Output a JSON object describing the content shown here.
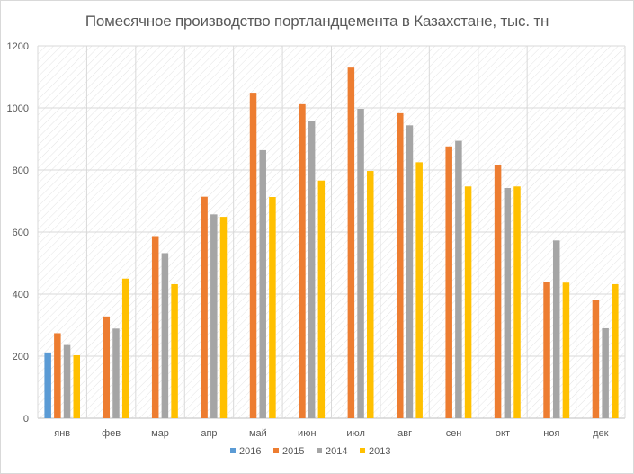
{
  "chart_data": {
    "type": "bar",
    "title": "Помесячное производство портландцемента в Казахстане, тыс. тн",
    "xlabel": "",
    "ylabel": "",
    "categories": [
      "янв",
      "фев",
      "мар",
      "апр",
      "май",
      "июн",
      "июл",
      "авг",
      "сен",
      "окт",
      "ноя",
      "дек"
    ],
    "ylim": [
      0,
      1200
    ],
    "yticks": [
      0,
      200,
      400,
      600,
      800,
      1000,
      1200
    ],
    "grid": true,
    "legend_position": "bottom",
    "series": [
      {
        "name": "2016",
        "color": "#5b9bd5",
        "values": [
          212,
          null,
          null,
          null,
          null,
          null,
          null,
          null,
          null,
          null,
          null,
          null
        ]
      },
      {
        "name": "2015",
        "color": "#ed7d31",
        "values": [
          274,
          328,
          587,
          714,
          1049,
          1012,
          1130,
          983,
          876,
          816,
          440,
          380
        ]
      },
      {
        "name": "2014",
        "color": "#a5a5a5",
        "values": [
          236,
          289,
          532,
          657,
          864,
          957,
          997,
          944,
          894,
          742,
          573,
          290
        ]
      },
      {
        "name": "2013",
        "color": "#ffc000",
        "values": [
          203,
          450,
          432,
          649,
          713,
          766,
          797,
          825,
          747,
          747,
          437,
          432
        ]
      }
    ]
  }
}
